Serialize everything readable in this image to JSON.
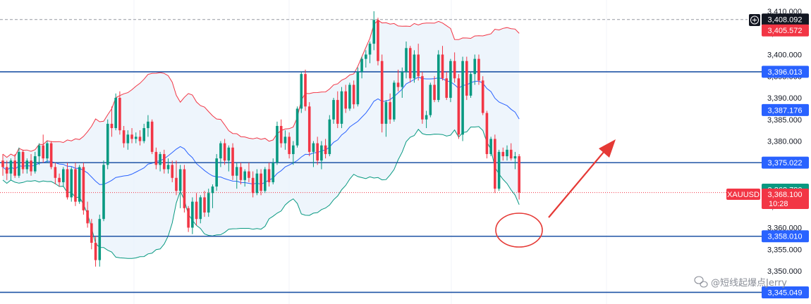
{
  "chart_data": {
    "type": "candlestick",
    "symbol": "XAUUSD",
    "last_price": "3,368.100",
    "countdown": "10:28",
    "ylim": [
      3344,
      3410
    ],
    "y_ticks": [
      "3,410.000",
      "3,405.000",
      "3,400.000",
      "3,395.000",
      "3,390.000",
      "3,385.000",
      "3,380.000",
      "3,375.000",
      "3,365.000",
      "3,360.000",
      "3,355.000",
      "3,350.000"
    ],
    "y_tick_values": [
      3410,
      3405,
      3400,
      3395,
      3390,
      3385,
      3380,
      3375,
      3365,
      3360,
      3355,
      3350
    ],
    "crosshair": {
      "value": 3408.092,
      "label": "3,408.092"
    },
    "horizontal_levels": [
      {
        "value": 3396.013,
        "label": "3,396.013"
      },
      {
        "value": 3375.022,
        "label": "3,375.022"
      },
      {
        "value": 3358.01,
        "label": "3,358.010"
      },
      {
        "value": 3345.049,
        "label": "3,345.049"
      }
    ],
    "price_labels": [
      {
        "value": 3405.572,
        "label": "3,405.572",
        "color": "#f23645"
      },
      {
        "value": 3387.176,
        "label": "3,387.176",
        "color": "#2962ff"
      },
      {
        "value": 3368.78,
        "label": "3,368.780",
        "color": "#089981"
      }
    ],
    "colors": {
      "up": "#089981",
      "down": "#f23645",
      "level": "#1e53a5",
      "bb_upper": "#f23645",
      "bb_mid": "#2962ff",
      "bb_lower": "#089981",
      "bb_fill": "#e8f1fb"
    },
    "candles": [
      [
        3375.5,
        3377,
        3372,
        3374
      ],
      [
        3374,
        3375.5,
        3371,
        3372.5
      ],
      [
        3372.5,
        3376,
        3371,
        3375.5
      ],
      [
        3375.5,
        3377,
        3371.5,
        3372
      ],
      [
        3372,
        3378.5,
        3371.5,
        3377.5
      ],
      [
        3377.5,
        3378,
        3372.5,
        3373.5
      ],
      [
        3373.5,
        3376,
        3372.5,
        3375.5
      ],
      [
        3375.5,
        3377,
        3372,
        3373
      ],
      [
        3373,
        3377.5,
        3372.5,
        3376.5
      ],
      [
        3376.5,
        3379.5,
        3374.5,
        3379
      ],
      [
        3379,
        3381.5,
        3375,
        3376
      ],
      [
        3376,
        3380,
        3375,
        3379.5
      ],
      [
        3379.5,
        3380,
        3373.5,
        3374
      ],
      [
        3374,
        3375,
        3370,
        3371.5
      ],
      [
        3371.5,
        3372.5,
        3369.5,
        3370.5
      ],
      [
        3370.5,
        3374,
        3369.5,
        3373.5
      ],
      [
        3373.5,
        3375,
        3366.5,
        3367
      ],
      [
        3367,
        3374,
        3366,
        3373.5
      ],
      [
        3373.5,
        3375,
        3365,
        3366
      ],
      [
        3366,
        3374.5,
        3365.5,
        3374
      ],
      [
        3374,
        3375,
        3363,
        3364
      ],
      [
        3364,
        3366,
        3360,
        3361
      ],
      [
        3361,
        3362,
        3355,
        3356.5
      ],
      [
        3356.5,
        3358,
        3351,
        3352.5
      ],
      [
        3352.5,
        3363,
        3351,
        3362
      ],
      [
        3362,
        3375.5,
        3361.5,
        3374.5
      ],
      [
        3374.5,
        3385,
        3373.5,
        3384
      ],
      [
        3384,
        3388,
        3381,
        3383
      ],
      [
        3383,
        3391,
        3382.5,
        3390
      ],
      [
        3390,
        3391.5,
        3381.5,
        3382.5
      ],
      [
        3382.5,
        3383.5,
        3378.5,
        3379.5
      ],
      [
        3379.5,
        3382.5,
        3378,
        3381.5
      ],
      [
        3381.5,
        3383,
        3379.5,
        3380.5
      ],
      [
        3380.5,
        3382,
        3379.5,
        3381
      ],
      [
        3381,
        3382.5,
        3379,
        3380
      ],
      [
        3380,
        3384,
        3379.5,
        3383
      ],
      [
        3383,
        3386,
        3381,
        3384.5
      ],
      [
        3384.5,
        3385,
        3377,
        3377.5
      ],
      [
        3377.5,
        3378.5,
        3373.5,
        3374.5
      ],
      [
        3374.5,
        3377.5,
        3373,
        3377
      ],
      [
        3377,
        3378,
        3372.5,
        3373.5
      ],
      [
        3373.5,
        3376,
        3372.5,
        3374.5
      ],
      [
        3374.5,
        3375.5,
        3370.5,
        3371.5
      ],
      [
        3371.5,
        3375.5,
        3367.5,
        3368.5
      ],
      [
        3368.5,
        3374.5,
        3364.5,
        3373.5
      ],
      [
        3373.5,
        3374.5,
        3363.5,
        3364.5
      ],
      [
        3364.5,
        3365,
        3359,
        3360
      ],
      [
        3360,
        3367,
        3358.5,
        3366
      ],
      [
        3366,
        3368,
        3360.5,
        3362
      ],
      [
        3362,
        3367.5,
        3361,
        3367
      ],
      [
        3367,
        3368.5,
        3362.5,
        3363.5
      ],
      [
        3363.5,
        3369,
        3362.5,
        3368
      ],
      [
        3368,
        3370,
        3364.5,
        3369.5
      ],
      [
        3369.5,
        3377,
        3368.5,
        3376
      ],
      [
        3376,
        3380,
        3374,
        3379.5
      ],
      [
        3379.5,
        3380.5,
        3374.5,
        3375.5
      ],
      [
        3375.5,
        3379,
        3373,
        3378.5
      ],
      [
        3378.5,
        3379.5,
        3371,
        3372
      ],
      [
        3372,
        3375,
        3369,
        3374
      ],
      [
        3374,
        3375,
        3370,
        3371
      ],
      [
        3371,
        3373.5,
        3369.5,
        3373
      ],
      [
        3373,
        3375,
        3370.5,
        3371.5
      ],
      [
        3371.5,
        3373,
        3367,
        3368
      ],
      [
        3368,
        3373.5,
        3367.5,
        3372.5
      ],
      [
        3372.5,
        3373.5,
        3367.5,
        3368.5
      ],
      [
        3368.5,
        3374,
        3368,
        3373.5
      ],
      [
        3373.5,
        3375,
        3369.5,
        3370.5
      ],
      [
        3370.5,
        3376,
        3370,
        3375
      ],
      [
        3375,
        3384.5,
        3374.5,
        3383.5
      ],
      [
        3383.5,
        3385,
        3378.5,
        3379.5
      ],
      [
        3379.5,
        3382.5,
        3378,
        3381
      ],
      [
        3381,
        3382,
        3376,
        3377
      ],
      [
        3377,
        3380,
        3374.5,
        3379
      ],
      [
        3379,
        3388,
        3378.5,
        3387.5
      ],
      [
        3387.5,
        3396,
        3386.5,
        3395.5
      ],
      [
        3395.5,
        3396.5,
        3387,
        3388
      ],
      [
        3388,
        3389,
        3376.5,
        3377.5
      ],
      [
        3377.5,
        3380,
        3374,
        3379.5
      ],
      [
        3379.5,
        3381,
        3374.5,
        3375.5
      ],
      [
        3375.5,
        3380,
        3373.5,
        3379
      ],
      [
        3379,
        3380.5,
        3376,
        3377
      ],
      [
        3377,
        3386,
        3376.5,
        3385
      ],
      [
        3385,
        3390,
        3384,
        3389.5
      ],
      [
        3389.5,
        3391.5,
        3383,
        3384
      ],
      [
        3384,
        3392.5,
        3383,
        3391.5
      ],
      [
        3391.5,
        3393,
        3386.5,
        3387.5
      ],
      [
        3387.5,
        3393.5,
        3387,
        3393
      ],
      [
        3393,
        3394,
        3387.5,
        3388.5
      ],
      [
        3388.5,
        3397,
        3388,
        3396
      ],
      [
        3396,
        3399.5,
        3394.5,
        3399
      ],
      [
        3399,
        3401,
        3397,
        3400
      ],
      [
        3400,
        3403,
        3398,
        3402.5
      ],
      [
        3402.5,
        3410,
        3401,
        3408
      ],
      [
        3408,
        3408.5,
        3397.5,
        3398.5
      ],
      [
        3398.5,
        3400,
        3382,
        3384
      ],
      [
        3384,
        3389.5,
        3381,
        3389
      ],
      [
        3389,
        3391,
        3384,
        3385
      ],
      [
        3385,
        3394,
        3384.5,
        3393.5
      ],
      [
        3393.5,
        3396.5,
        3391.5,
        3392.5
      ],
      [
        3392.5,
        3397,
        3390,
        3396
      ],
      [
        3396,
        3403,
        3394.5,
        3401.5
      ],
      [
        3401.5,
        3402,
        3393.5,
        3394.5
      ],
      [
        3394.5,
        3401,
        3393.5,
        3400
      ],
      [
        3400,
        3402.5,
        3394,
        3395
      ],
      [
        3395,
        3396,
        3384,
        3385
      ],
      [
        3385,
        3387,
        3383,
        3386
      ],
      [
        3386,
        3393.5,
        3385.5,
        3393
      ],
      [
        3393,
        3395,
        3389,
        3389.5
      ],
      [
        3389.5,
        3401,
        3389,
        3400
      ],
      [
        3400,
        3402,
        3394,
        3394.5
      ],
      [
        3394.5,
        3396,
        3389.5,
        3390
      ],
      [
        3390,
        3399,
        3389,
        3398.5
      ],
      [
        3398.5,
        3400.5,
        3393.5,
        3394.5
      ],
      [
        3394.5,
        3395.5,
        3380.5,
        3381.5
      ],
      [
        3381.5,
        3399.5,
        3380,
        3398.5
      ],
      [
        3398.5,
        3399.5,
        3389.5,
        3390.5
      ],
      [
        3390.5,
        3396,
        3390,
        3395.5
      ],
      [
        3395.5,
        3400,
        3393,
        3399
      ],
      [
        3399,
        3400,
        3393,
        3394
      ],
      [
        3394,
        3395,
        3386,
        3386.5
      ],
      [
        3386.5,
        3387,
        3376,
        3377
      ],
      [
        3377,
        3381,
        3376.5,
        3380.5
      ],
      [
        3380.5,
        3381.5,
        3368,
        3369
      ],
      [
        3369,
        3378,
        3368.5,
        3377.5
      ],
      [
        3377.5,
        3378.5,
        3375.5,
        3376.5
      ],
      [
        3376.5,
        3379,
        3375.5,
        3378
      ],
      [
        3378,
        3379.5,
        3375.5,
        3376
      ],
      [
        3376,
        3377.5,
        3373.5,
        3376.5
      ],
      [
        3376.5,
        3377,
        3366.5,
        3368.1
      ]
    ]
  },
  "watermark": {
    "icon": "wechat-icon",
    "text": "@短线起爆点Jerry"
  },
  "annotations": {
    "circle": "red-circle",
    "arrow": "red-arrow-up-right"
  }
}
